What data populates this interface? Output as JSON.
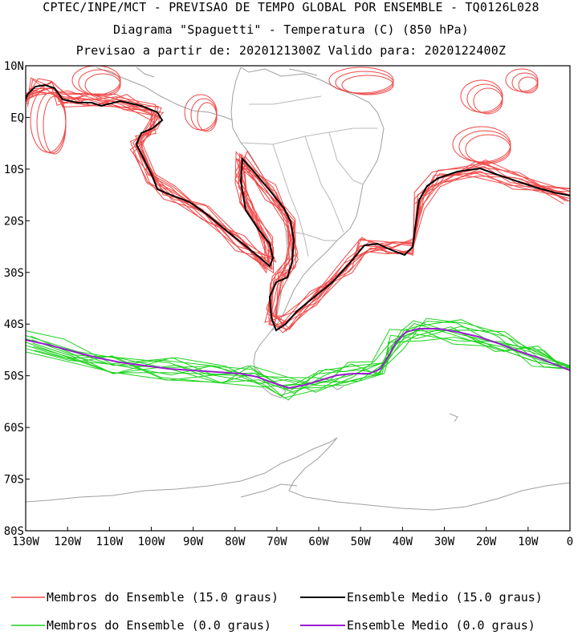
{
  "title": {
    "line1": "CPTEC/INPE/MCT - PREVISAO DE TEMPO GLOBAL POR ENSEMBLE - TQ0126L028",
    "line2": "Diagrama \"Spaguetti\" - Temperatura (C) (850 hPa)",
    "line3": "Previsao a partir de: 2020121300Z  Valido para: 2020122400Z"
  },
  "map": {
    "lon_range": [
      -130,
      0
    ],
    "lat_range": [
      -80,
      10
    ],
    "lat_labels": [
      "10N",
      "EQ",
      "10S",
      "20S",
      "30S",
      "40S",
      "50S",
      "60S",
      "70S",
      "80S"
    ],
    "lon_labels": [
      "130W",
      "120W",
      "110W",
      "100W",
      "90W",
      "80W",
      "70W",
      "60W",
      "50W",
      "40W",
      "30W",
      "20W",
      "10W",
      "0"
    ],
    "coast_color": "#a0a0a0"
  },
  "legend": {
    "red_members": {
      "label": "Membros do Ensemble (15.0 graus)",
      "color": "#f04848"
    },
    "black_mean": {
      "label": "Ensemble Medio (15.0 graus)",
      "color": "#000000"
    },
    "green_members": {
      "label": "Membros do Ensemble (0.0 graus)",
      "color": "#1ed21e"
    },
    "purple_mean": {
      "label": "Ensemble Medio (0.0 graus)",
      "color": "#9a1cd0"
    }
  }
}
